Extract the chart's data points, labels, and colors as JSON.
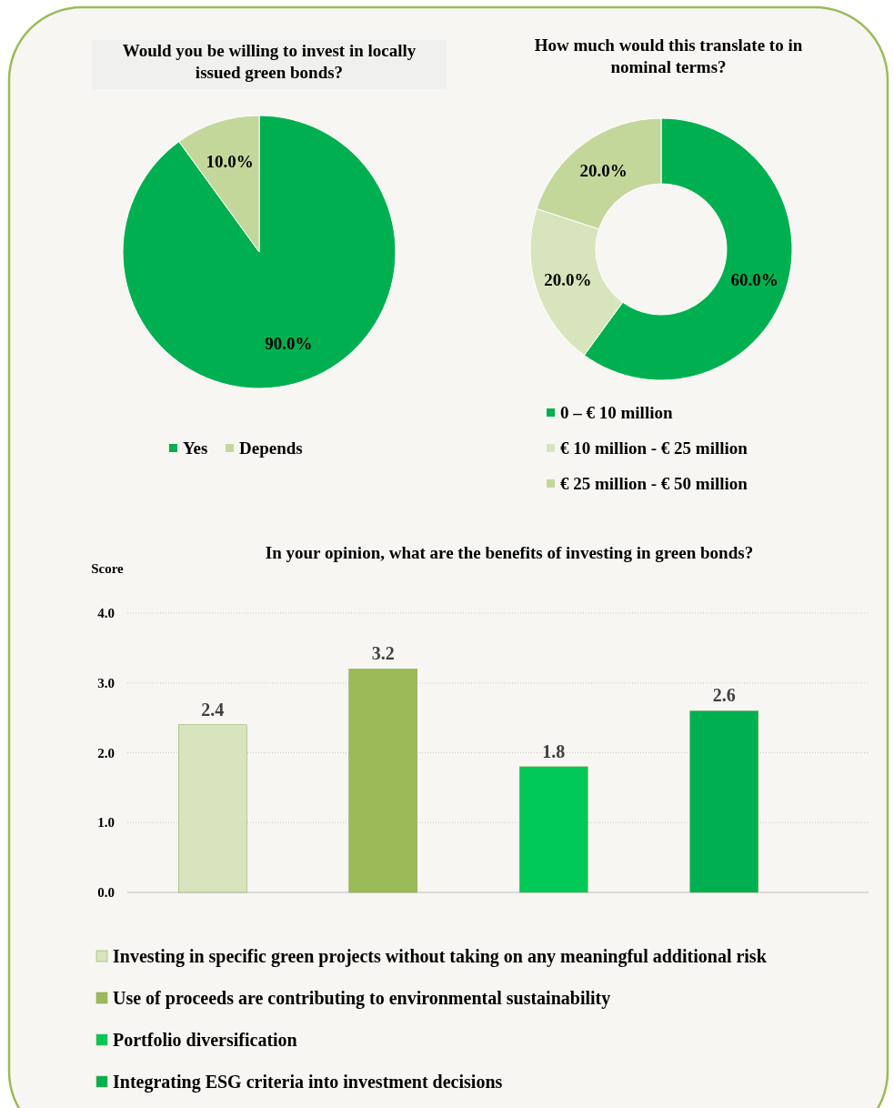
{
  "chart_data": [
    {
      "type": "pie",
      "title": "Would you be willing to invest in locally issued green bonds?",
      "categories": [
        "Yes",
        "Depends"
      ],
      "values": [
        90,
        10
      ],
      "colors": [
        "#00b050",
        "#c4d79b"
      ],
      "value_labels": [
        "90.0%",
        "10.0%"
      ],
      "legend": "bottom"
    },
    {
      "type": "donut",
      "title": "How much would this translate to in nominal terms?",
      "categories": [
        "0 – € 10 million",
        "€ 10 million - € 25 million",
        "€ 25 million - € 50 million"
      ],
      "values": [
        60,
        20,
        20
      ],
      "colors": [
        "#00b050",
        "#d8e4bc",
        "#c4d79b"
      ],
      "value_labels": [
        "60.0%",
        "20.0%",
        "20.0%"
      ],
      "legend": "bottom"
    },
    {
      "type": "bar",
      "title": "In your opinion, what are the benefits of investing in green bonds?",
      "ylabel": "Score",
      "categories": [
        null,
        null,
        null,
        null
      ],
      "series": [
        {
          "name": "Investing in specific green projects without taking on any meaningful additional risk",
          "color": "#d8e4bc",
          "values": [
            2.4,
            null,
            null,
            null
          ]
        },
        {
          "name": "Use of proceeds are contributing to environmental sustainability",
          "color": "#9bbb59",
          "values": [
            null,
            3.2,
            null,
            null
          ]
        },
        {
          "name": "Portfolio diversification",
          "color": "#00c957",
          "values": [
            null,
            null,
            1.8,
            null
          ]
        },
        {
          "name": "Integrating ESG criteria into investment decisions",
          "color": "#00b050",
          "values": [
            null,
            null,
            null,
            2.6
          ]
        }
      ],
      "ylim": [
        0,
        4
      ],
      "yticks": [
        {
          "value": 0,
          "label": "0.0"
        },
        {
          "value": 1,
          "label": "1.0"
        },
        {
          "value": 2,
          "label": "2.0"
        },
        {
          "value": 3,
          "label": "3.0"
        },
        {
          "value": 4,
          "label": "4.0"
        }
      ],
      "grid": "y",
      "data_labels": true,
      "legend": "bottom"
    }
  ]
}
